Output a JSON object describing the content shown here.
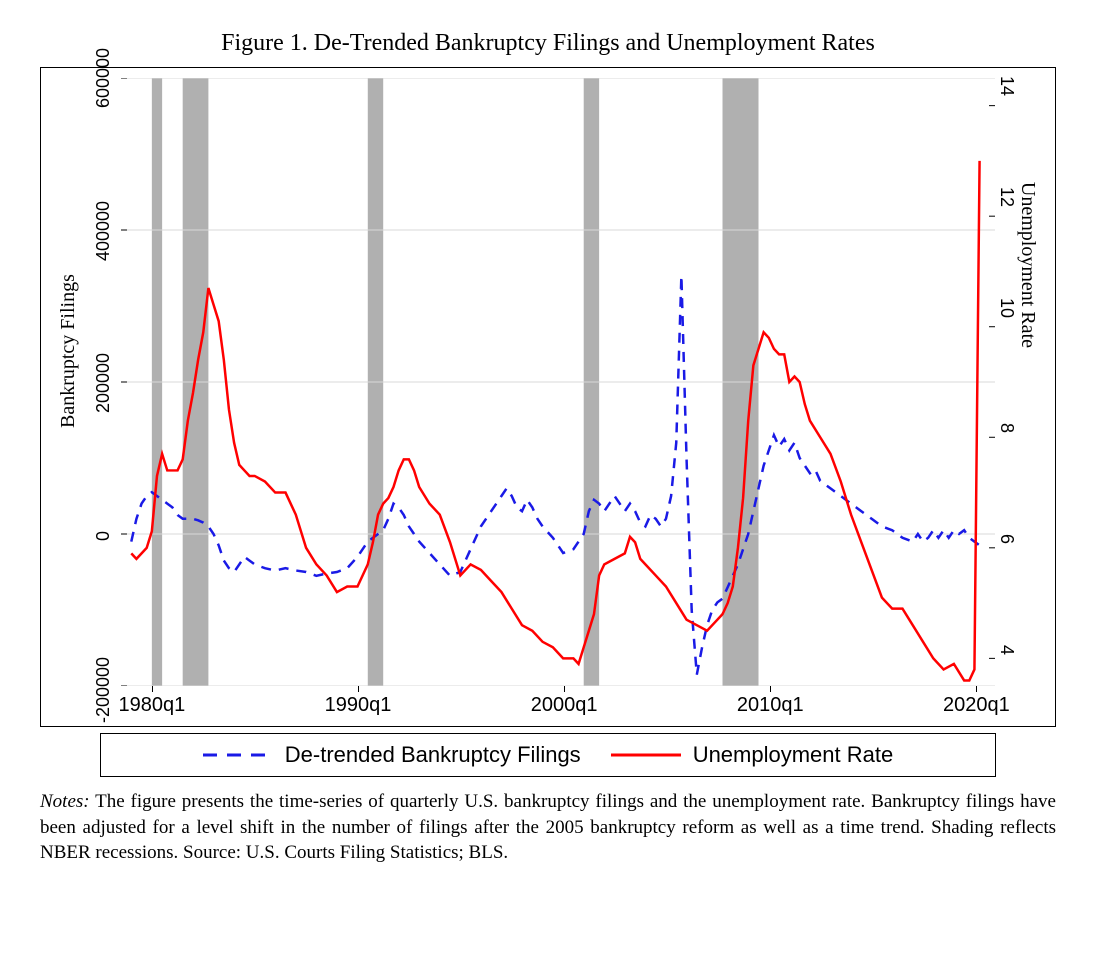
{
  "figure": {
    "title": "Figure 1. De-Trended Bankruptcy Filings and Unemployment Rates",
    "notes_label": "Notes:",
    "notes": "The figure presents the time-series of quarterly U.S. bankruptcy filings and the unemployment rate. Bankruptcy filings have been adjusted for a level shift in the number of filings after the 2005 bankruptcy reform as well as a time trend. Shading reflects NBER recessions. Source: U.S. Courts Filing Statistics; BLS."
  },
  "chart": {
    "type": "line-dual-axis",
    "background_color": "#ffffff",
    "grid_color": "#d9d9d9",
    "grid_width": 1,
    "border_color": "#000000",
    "font_family_axes": "Arial, Helvetica, sans-serif",
    "font_family_title": "Times New Roman, Times, serif",
    "title_fontsize": 24,
    "axis_title_fontsize": 20,
    "tick_fontsize": 18,
    "x": {
      "min": 1978.5,
      "max": 2021.0,
      "ticks": [
        1980,
        1990,
        2000,
        2010,
        2020
      ],
      "tick_labels": [
        "1980q1",
        "1990q1",
        "2000q1",
        "2010q1",
        "2020q1"
      ]
    },
    "y_left": {
      "title": "Bankruptcy Filings",
      "min": -200000,
      "max": 600000,
      "ticks": [
        -200000,
        0,
        200000,
        400000,
        600000
      ],
      "tick_labels": [
        "-200000",
        "0",
        "200000",
        "400000",
        "600000"
      ]
    },
    "y_right": {
      "title": "Unemployment Rate",
      "min": 3.5,
      "max": 14.5,
      "ticks": [
        4,
        6,
        8,
        10,
        12,
        14
      ],
      "tick_labels": [
        "4",
        "6",
        "8",
        "10",
        "12",
        "14"
      ]
    },
    "recessions": {
      "color": "#b0b0b0",
      "opacity": 1.0,
      "bands": [
        [
          1980.0,
          1980.5
        ],
        [
          1981.5,
          1982.75
        ],
        [
          1990.5,
          1991.25
        ],
        [
          2001.0,
          2001.75
        ],
        [
          2007.75,
          2009.5
        ]
      ]
    },
    "series": [
      {
        "name": "De-trended Bankruptcy Filings",
        "axis": "left",
        "color": "#1a1ae6",
        "width": 2.5,
        "dash": "10,8",
        "legend_label": "De-trended Bankruptcy Filings",
        "points": [
          [
            1979.0,
            -10000
          ],
          [
            1979.25,
            20000
          ],
          [
            1979.5,
            40000
          ],
          [
            1979.75,
            50000
          ],
          [
            1980.0,
            55000
          ],
          [
            1980.25,
            50000
          ],
          [
            1980.5,
            45000
          ],
          [
            1980.75,
            40000
          ],
          [
            1981.0,
            35000
          ],
          [
            1981.25,
            25000
          ],
          [
            1981.5,
            20000
          ],
          [
            1981.75,
            20000
          ],
          [
            1982.0,
            20000
          ],
          [
            1982.25,
            18000
          ],
          [
            1982.5,
            15000
          ],
          [
            1982.75,
            10000
          ],
          [
            1983.0,
            0
          ],
          [
            1983.25,
            -15000
          ],
          [
            1983.5,
            -35000
          ],
          [
            1983.75,
            -45000
          ],
          [
            1984.0,
            -50000
          ],
          [
            1984.25,
            -40000
          ],
          [
            1984.5,
            -30000
          ],
          [
            1984.75,
            -35000
          ],
          [
            1985.0,
            -40000
          ],
          [
            1985.5,
            -45000
          ],
          [
            1986.0,
            -48000
          ],
          [
            1986.5,
            -45000
          ],
          [
            1987.0,
            -48000
          ],
          [
            1987.5,
            -50000
          ],
          [
            1988.0,
            -55000
          ],
          [
            1988.5,
            -52000
          ],
          [
            1989.0,
            -50000
          ],
          [
            1989.5,
            -45000
          ],
          [
            1990.0,
            -30000
          ],
          [
            1990.5,
            -10000
          ],
          [
            1991.0,
            0
          ],
          [
            1991.25,
            5000
          ],
          [
            1991.5,
            20000
          ],
          [
            1991.75,
            40000
          ],
          [
            1992.0,
            35000
          ],
          [
            1992.25,
            25000
          ],
          [
            1992.5,
            10000
          ],
          [
            1992.75,
            0
          ],
          [
            1993.0,
            -10000
          ],
          [
            1993.5,
            -25000
          ],
          [
            1994.0,
            -40000
          ],
          [
            1994.5,
            -55000
          ],
          [
            1995.0,
            -50000
          ],
          [
            1995.5,
            -20000
          ],
          [
            1996.0,
            10000
          ],
          [
            1996.5,
            30000
          ],
          [
            1997.0,
            50000
          ],
          [
            1997.25,
            60000
          ],
          [
            1997.5,
            50000
          ],
          [
            1997.75,
            35000
          ],
          [
            1998.0,
            30000
          ],
          [
            1998.25,
            45000
          ],
          [
            1998.5,
            35000
          ],
          [
            1998.75,
            20000
          ],
          [
            1999.0,
            10000
          ],
          [
            1999.5,
            -5000
          ],
          [
            2000.0,
            -25000
          ],
          [
            2000.5,
            -20000
          ],
          [
            2001.0,
            0
          ],
          [
            2001.25,
            30000
          ],
          [
            2001.5,
            45000
          ],
          [
            2001.75,
            40000
          ],
          [
            2002.0,
            30000
          ],
          [
            2002.25,
            40000
          ],
          [
            2002.5,
            50000
          ],
          [
            2002.75,
            40000
          ],
          [
            2003.0,
            30000
          ],
          [
            2003.25,
            40000
          ],
          [
            2003.5,
            30000
          ],
          [
            2003.75,
            15000
          ],
          [
            2004.0,
            10000
          ],
          [
            2004.25,
            25000
          ],
          [
            2004.5,
            20000
          ],
          [
            2004.75,
            10000
          ],
          [
            2005.0,
            20000
          ],
          [
            2005.25,
            50000
          ],
          [
            2005.5,
            120000
          ],
          [
            2005.75,
            340000
          ],
          [
            2006.0,
            100000
          ],
          [
            2006.25,
            -100000
          ],
          [
            2006.5,
            -185000
          ],
          [
            2006.75,
            -150000
          ],
          [
            2007.0,
            -120000
          ],
          [
            2007.25,
            -100000
          ],
          [
            2007.5,
            -90000
          ],
          [
            2007.75,
            -85000
          ],
          [
            2008.0,
            -70000
          ],
          [
            2008.5,
            -40000
          ],
          [
            2009.0,
            0
          ],
          [
            2009.5,
            60000
          ],
          [
            2009.75,
            90000
          ],
          [
            2010.0,
            110000
          ],
          [
            2010.25,
            130000
          ],
          [
            2010.5,
            115000
          ],
          [
            2010.75,
            125000
          ],
          [
            2011.0,
            110000
          ],
          [
            2011.25,
            120000
          ],
          [
            2011.5,
            100000
          ],
          [
            2011.75,
            90000
          ],
          [
            2012.0,
            80000
          ],
          [
            2012.25,
            85000
          ],
          [
            2012.5,
            70000
          ],
          [
            2012.75,
            65000
          ],
          [
            2013.0,
            60000
          ],
          [
            2013.5,
            50000
          ],
          [
            2014.0,
            40000
          ],
          [
            2014.5,
            30000
          ],
          [
            2015.0,
            20000
          ],
          [
            2015.5,
            10000
          ],
          [
            2016.0,
            5000
          ],
          [
            2016.5,
            -5000
          ],
          [
            2017.0,
            -10000
          ],
          [
            2017.25,
            0
          ],
          [
            2017.5,
            -10000
          ],
          [
            2017.75,
            -5000
          ],
          [
            2018.0,
            5000
          ],
          [
            2018.25,
            -5000
          ],
          [
            2018.5,
            5000
          ],
          [
            2018.75,
            -5000
          ],
          [
            2019.0,
            5000
          ],
          [
            2019.25,
            0
          ],
          [
            2019.5,
            5000
          ],
          [
            2019.75,
            -5000
          ],
          [
            2020.0,
            -10000
          ],
          [
            2020.25,
            -15000
          ]
        ]
      },
      {
        "name": "Unemployment Rate",
        "axis": "right",
        "color": "#ff0000",
        "width": 2.5,
        "dash": "",
        "legend_label": "Unemployment Rate",
        "points": [
          [
            1979.0,
            5.9
          ],
          [
            1979.25,
            5.8
          ],
          [
            1979.5,
            5.9
          ],
          [
            1979.75,
            6.0
          ],
          [
            1980.0,
            6.3
          ],
          [
            1980.25,
            7.3
          ],
          [
            1980.5,
            7.7
          ],
          [
            1980.75,
            7.4
          ],
          [
            1981.0,
            7.4
          ],
          [
            1981.25,
            7.4
          ],
          [
            1981.5,
            7.6
          ],
          [
            1981.75,
            8.3
          ],
          [
            1982.0,
            8.8
          ],
          [
            1982.25,
            9.4
          ],
          [
            1982.5,
            9.9
          ],
          [
            1982.75,
            10.7
          ],
          [
            1983.0,
            10.4
          ],
          [
            1983.25,
            10.1
          ],
          [
            1983.5,
            9.4
          ],
          [
            1983.75,
            8.5
          ],
          [
            1984.0,
            7.9
          ],
          [
            1984.25,
            7.5
          ],
          [
            1984.5,
            7.4
          ],
          [
            1984.75,
            7.3
          ],
          [
            1985.0,
            7.3
          ],
          [
            1985.5,
            7.2
          ],
          [
            1986.0,
            7.0
          ],
          [
            1986.5,
            7.0
          ],
          [
            1987.0,
            6.6
          ],
          [
            1987.5,
            6.0
          ],
          [
            1988.0,
            5.7
          ],
          [
            1988.5,
            5.5
          ],
          [
            1989.0,
            5.2
          ],
          [
            1989.5,
            5.3
          ],
          [
            1990.0,
            5.3
          ],
          [
            1990.5,
            5.7
          ],
          [
            1990.75,
            6.1
          ],
          [
            1991.0,
            6.6
          ],
          [
            1991.25,
            6.8
          ],
          [
            1991.5,
            6.9
          ],
          [
            1991.75,
            7.1
          ],
          [
            1992.0,
            7.4
          ],
          [
            1992.25,
            7.6
          ],
          [
            1992.5,
            7.6
          ],
          [
            1992.75,
            7.4
          ],
          [
            1993.0,
            7.1
          ],
          [
            1993.5,
            6.8
          ],
          [
            1994.0,
            6.6
          ],
          [
            1994.5,
            6.1
          ],
          [
            1995.0,
            5.5
          ],
          [
            1995.5,
            5.7
          ],
          [
            1996.0,
            5.6
          ],
          [
            1996.5,
            5.4
          ],
          [
            1997.0,
            5.2
          ],
          [
            1997.5,
            4.9
          ],
          [
            1998.0,
            4.6
          ],
          [
            1998.5,
            4.5
          ],
          [
            1999.0,
            4.3
          ],
          [
            1999.5,
            4.2
          ],
          [
            2000.0,
            4.0
          ],
          [
            2000.5,
            4.0
          ],
          [
            2000.75,
            3.9
          ],
          [
            2001.0,
            4.2
          ],
          [
            2001.25,
            4.5
          ],
          [
            2001.5,
            4.8
          ],
          [
            2001.75,
            5.5
          ],
          [
            2002.0,
            5.7
          ],
          [
            2002.5,
            5.8
          ],
          [
            2003.0,
            5.9
          ],
          [
            2003.25,
            6.2
          ],
          [
            2003.5,
            6.1
          ],
          [
            2003.75,
            5.8
          ],
          [
            2004.0,
            5.7
          ],
          [
            2004.5,
            5.5
          ],
          [
            2005.0,
            5.3
          ],
          [
            2005.5,
            5.0
          ],
          [
            2006.0,
            4.7
          ],
          [
            2006.5,
            4.6
          ],
          [
            2007.0,
            4.5
          ],
          [
            2007.5,
            4.7
          ],
          [
            2007.75,
            4.8
          ],
          [
            2008.0,
            5.0
          ],
          [
            2008.25,
            5.3
          ],
          [
            2008.5,
            6.0
          ],
          [
            2008.75,
            6.9
          ],
          [
            2009.0,
            8.3
          ],
          [
            2009.25,
            9.3
          ],
          [
            2009.5,
            9.6
          ],
          [
            2009.75,
            9.9
          ],
          [
            2010.0,
            9.8
          ],
          [
            2010.25,
            9.6
          ],
          [
            2010.5,
            9.5
          ],
          [
            2010.75,
            9.5
          ],
          [
            2011.0,
            9.0
          ],
          [
            2011.25,
            9.1
          ],
          [
            2011.5,
            9.0
          ],
          [
            2011.75,
            8.6
          ],
          [
            2012.0,
            8.3
          ],
          [
            2012.5,
            8.0
          ],
          [
            2013.0,
            7.7
          ],
          [
            2013.5,
            7.2
          ],
          [
            2014.0,
            6.6
          ],
          [
            2014.5,
            6.1
          ],
          [
            2015.0,
            5.6
          ],
          [
            2015.5,
            5.1
          ],
          [
            2016.0,
            4.9
          ],
          [
            2016.5,
            4.9
          ],
          [
            2017.0,
            4.6
          ],
          [
            2017.5,
            4.3
          ],
          [
            2018.0,
            4.0
          ],
          [
            2018.5,
            3.8
          ],
          [
            2019.0,
            3.9
          ],
          [
            2019.5,
            3.6
          ],
          [
            2019.75,
            3.6
          ],
          [
            2020.0,
            3.8
          ],
          [
            2020.25,
            13.0
          ]
        ]
      }
    ]
  }
}
